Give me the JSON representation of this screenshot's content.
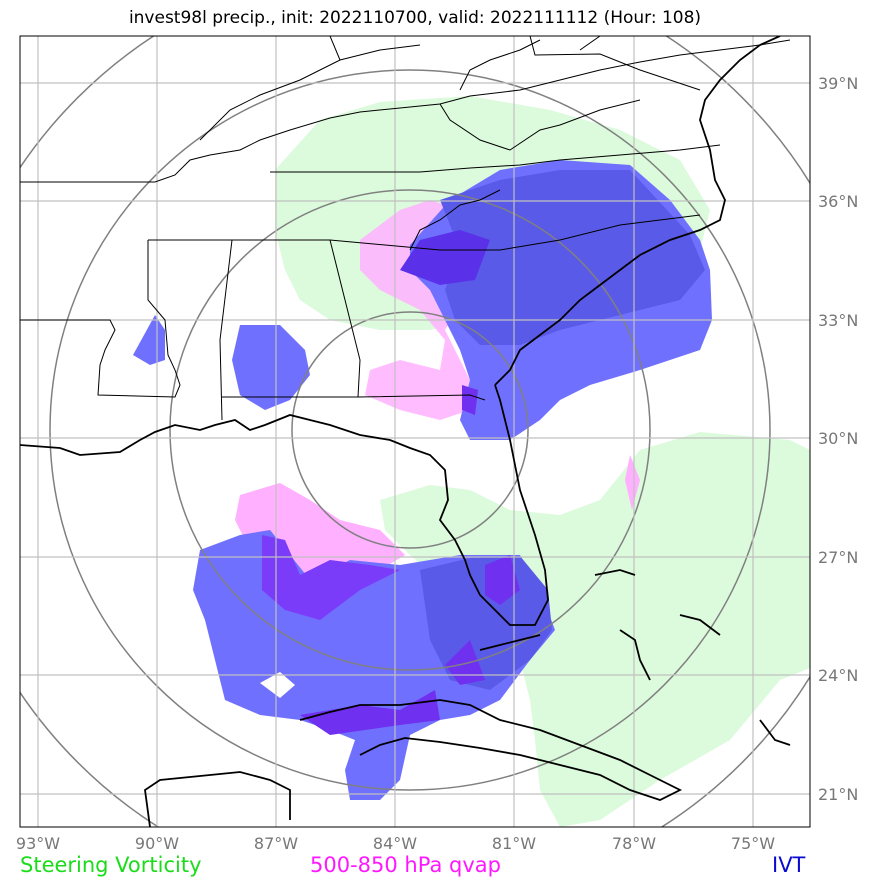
{
  "title": "invest98l precip., init: 2022110700, valid: 2022111112 (Hour: 108)",
  "x_ticks": [
    "93°W",
    "90°W",
    "87°W",
    "84°W",
    "81°W",
    "78°W",
    "75°W"
  ],
  "y_ticks": [
    "39°N",
    "36°N",
    "33°N",
    "30°N",
    "27°N",
    "24°N",
    "21°N"
  ],
  "legend": {
    "steering": "Steering Vorticity",
    "qvap": "500-850 hPa qvap",
    "ivt": "IVT"
  },
  "colors": {
    "steering": "#1adc1a",
    "steering_fill": "#dcfadc",
    "qvap": "#ff18ff",
    "qvap_fill": "#ffb0ff",
    "ivt": "#0a0ad0",
    "ivt_fill": "#7070ff",
    "overlap_fill": "#5a5ae8",
    "overlap_dark": "#7030f0"
  }
}
